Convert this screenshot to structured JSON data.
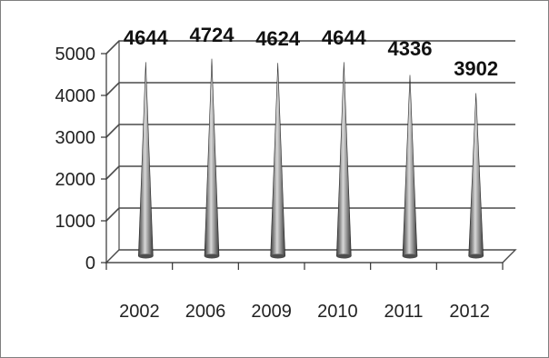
{
  "chart_data": {
    "type": "bar",
    "style": "3d-cone",
    "categories": [
      "2002",
      "2006",
      "2009",
      "2010",
      "2011",
      "2012"
    ],
    "values": [
      4644,
      4724,
      4624,
      4644,
      4336,
      3902
    ],
    "data_labels": [
      "4644",
      "4724",
      "4624",
      "4644",
      "4336",
      "3902"
    ],
    "ylim": [
      0,
      5000
    ],
    "yticks": [
      "0",
      "1000",
      "2000",
      "3000",
      "4000",
      "5000"
    ],
    "grid": true,
    "legend": "none",
    "colors": {
      "cone_dark": "#3c3c3c",
      "cone_light": "#d8d8d8",
      "gridline": "#4a4a4a",
      "frame": "#7f7f7f"
    }
  }
}
